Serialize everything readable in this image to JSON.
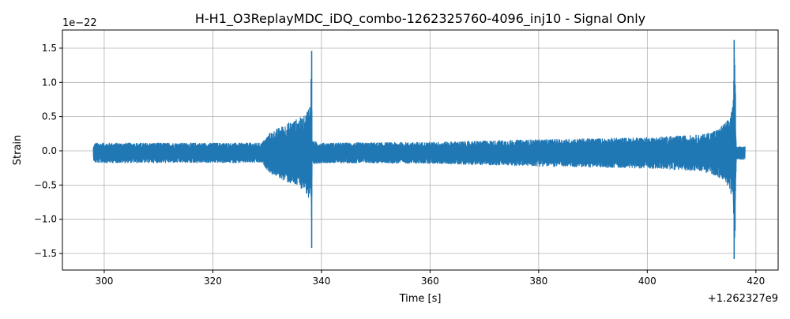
{
  "chart_data": {
    "type": "line",
    "title": "H-H1_O3ReplayMDC_iDQ_combo-1262325760-4096_inj10 - Signal Only",
    "xlabel": "Time [s]",
    "ylabel": "Strain",
    "x_offset_label": "+1.262327e9",
    "y_scale_label": "1e−22",
    "xlim": [
      292.3,
      424.1
    ],
    "ylim": [
      -1.742,
      1.765
    ],
    "xticks": [
      300,
      320,
      340,
      360,
      380,
      400,
      420
    ],
    "xtick_labels": [
      "300",
      "320",
      "340",
      "360",
      "380",
      "400",
      "420"
    ],
    "yticks": [
      -1.5,
      -1.0,
      -0.5,
      0.0,
      0.5,
      1.0,
      1.5
    ],
    "ytick_labels": [
      "−1.5",
      "−1.0",
      "−0.5",
      "0.0",
      "0.5",
      "1.0",
      "1.5"
    ],
    "grid": true,
    "series_color": "#1f77b4",
    "envelope": {
      "t": [
        298.0,
        298.3,
        329.0,
        330.5,
        334.0,
        337.0,
        338.0,
        338.15,
        338.3,
        340.0,
        360.0,
        380.0,
        400.0,
        410.0,
        413.0,
        415.0,
        415.8,
        416.1,
        416.4,
        418.0
      ],
      "amplitude": [
        0.1,
        0.15,
        0.15,
        0.3,
        0.45,
        0.55,
        0.8,
        1.44,
        0.18,
        0.15,
        0.16,
        0.2,
        0.23,
        0.27,
        0.35,
        0.5,
        0.7,
        1.6,
        0.1,
        0.1
      ]
    }
  }
}
